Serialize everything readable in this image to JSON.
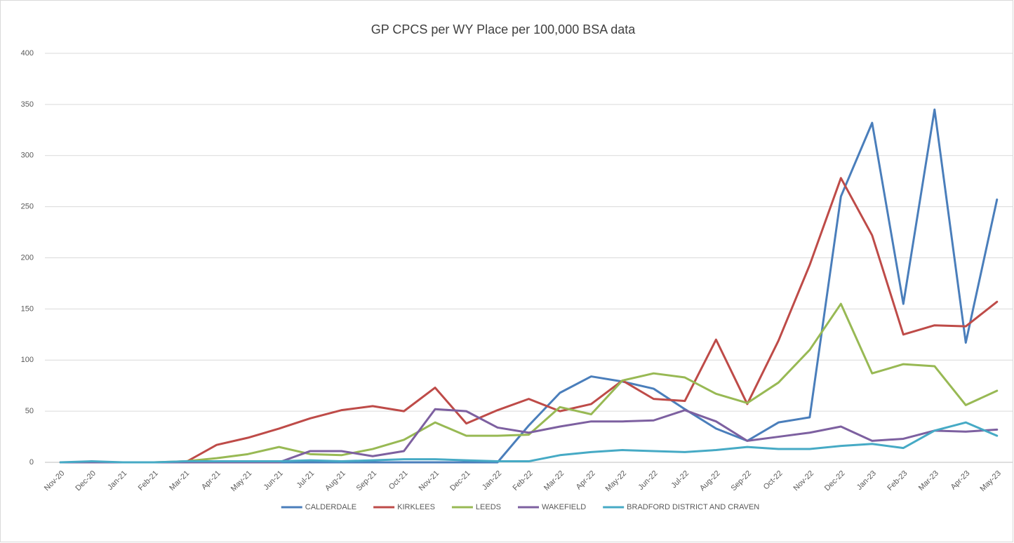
{
  "chart_data": {
    "type": "line",
    "title": "GP CPCS per WY Place per 100,000 BSA data",
    "categories": [
      "Nov-20",
      "Dec-20",
      "Jan-21",
      "Feb-21",
      "Mar-21",
      "Apr-21",
      "May-21",
      "Jun-21",
      "Jul-21",
      "Aug-21",
      "Sep-21",
      "Oct-21",
      "Nov-21",
      "Dec-21",
      "Jan-22",
      "Feb-22",
      "Mar-22",
      "Apr-22",
      "May-22",
      "Jun-22",
      "Jul-22",
      "Aug-22",
      "Sep-22",
      "Oct-22",
      "Nov-22",
      "Dec-22",
      "Jan-23",
      "Feb-23",
      "Mar-23",
      "Apr-23",
      "May-23"
    ],
    "series": [
      {
        "name": "CALDERDALE",
        "color": "#4a7ebb",
        "values": [
          0,
          0,
          0,
          0,
          0,
          0,
          0,
          0,
          0,
          0,
          0,
          0,
          0,
          0,
          0,
          36,
          68,
          84,
          79,
          72,
          52,
          33,
          21,
          39,
          44,
          260,
          332,
          155,
          345,
          117,
          257
        ]
      },
      {
        "name": "KIRKLEES",
        "color": "#be4b48",
        "values": [
          0,
          0,
          0,
          0,
          0,
          17,
          24,
          33,
          43,
          51,
          55,
          50,
          73,
          38,
          51,
          62,
          50,
          57,
          80,
          62,
          60,
          120,
          57,
          119,
          193,
          278,
          222,
          125,
          134,
          133,
          157
        ]
      },
      {
        "name": "LEEDS",
        "color": "#98b954",
        "values": [
          0,
          0,
          0,
          0,
          1,
          4,
          8,
          15,
          8,
          7,
          13,
          22,
          39,
          26,
          26,
          27,
          54,
          47,
          80,
          87,
          83,
          67,
          58,
          78,
          110,
          155,
          87,
          96,
          94,
          56,
          70
        ]
      },
      {
        "name": "WAKEFIELD",
        "color": "#7d60a0",
        "values": [
          0,
          0,
          0,
          0,
          0,
          0,
          0,
          0,
          11,
          11,
          6,
          11,
          52,
          50,
          34,
          29,
          35,
          40,
          40,
          41,
          51,
          40,
          21,
          25,
          29,
          35,
          21,
          23,
          31,
          30,
          32
        ]
      },
      {
        "name": "BRADFORD DISTRICT AND CRAVEN",
        "color": "#46aac5",
        "values": [
          0,
          1,
          0,
          0,
          1,
          1,
          1,
          1,
          2,
          1,
          2,
          3,
          3,
          2,
          1,
          1,
          7,
          10,
          12,
          11,
          10,
          12,
          15,
          13,
          13,
          16,
          18,
          14,
          31,
          39,
          26
        ]
      }
    ],
    "ylim": [
      0,
      400
    ],
    "yticks": [
      0,
      50,
      100,
      150,
      200,
      250,
      300,
      350,
      400
    ],
    "grid": true,
    "legend": "bottom"
  }
}
